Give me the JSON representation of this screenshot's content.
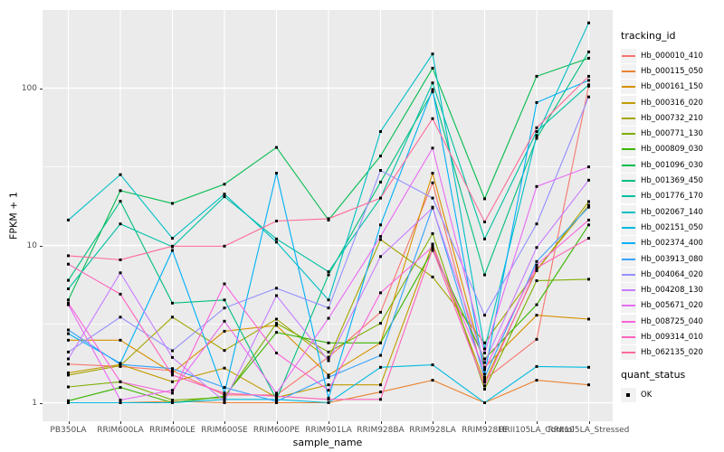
{
  "figure": {
    "background": "#FFFFFF",
    "panel_background": "#EBEBEB",
    "grid_color": "#FFFFFF",
    "tick_label_color": "#4D4D4D",
    "marker_color": "#000000",
    "marker_shape": "filled-square"
  },
  "axes": {
    "x_title": "sample_name",
    "y_title": "FPKM + 1",
    "y_tick_labels": [
      "1",
      "10",
      "100"
    ]
  },
  "legend": {
    "tracking_title": "tracking_id",
    "quant_title": "quant_status",
    "quant_items": [
      {
        "label": "OK"
      }
    ],
    "key_background": "#F2F2F2"
  },
  "chart_data": {
    "type": "line",
    "log_y": true,
    "xlabel": "sample_name",
    "ylabel": "FPKM + 1",
    "ylim": [
      0.93,
      330
    ],
    "y_ticks": [
      1,
      10,
      100
    ],
    "y_minor_gridlines": [
      3.162,
      31.62,
      316.2
    ],
    "grid": true,
    "legend_position": "right",
    "quant_status": "OK",
    "categories": [
      "PB350LA",
      "RRIM600LA",
      "RRIM600LE",
      "RRIM600SE",
      "RRIM600PE",
      "RRIM901LA",
      "RRIM928BA",
      "RRIM928LA",
      "RRIM928LE",
      "RRII105LA_Control",
      "RRII105LA_Stressed"
    ],
    "series": [
      {
        "name": "Hb_000010_410",
        "color": "#F8766D",
        "values": [
          1.76,
          1.7,
          1.6,
          1.12,
          1.12,
          1.95,
          3.76,
          25,
          1.4,
          2.53,
          103
        ]
      },
      {
        "name": "Hb_000115_050",
        "color": "#EA8331",
        "values": [
          1.0,
          1.0,
          1.02,
          1.0,
          1.0,
          1.0,
          1.17,
          1.39,
          1.0,
          1.39,
          1.3
        ]
      },
      {
        "name": "Hb_000161_150",
        "color": "#D89000",
        "values": [
          2.5,
          2.5,
          1.55,
          2.85,
          3.1,
          1.5,
          2.4,
          28.8,
          1.68,
          3.6,
          3.4
        ]
      },
      {
        "name": "Hb_000316_020",
        "color": "#C09B00",
        "values": [
          1.55,
          1.75,
          1.36,
          1.66,
          1.08,
          1.3,
          1.3,
          10.2,
          1.35,
          7.0,
          18.0
        ]
      },
      {
        "name": "Hb_000732_210",
        "color": "#A3A500",
        "values": [
          1.5,
          1.72,
          3.5,
          2.15,
          3.4,
          1.9,
          10.9,
          6.3,
          2.4,
          6.9,
          19.0
        ]
      },
      {
        "name": "Hb_000771_130",
        "color": "#7CAE00",
        "values": [
          1.26,
          1.36,
          1.04,
          1.08,
          3.2,
          2.1,
          3.2,
          11.9,
          1.22,
          5.97,
          6.1
        ]
      },
      {
        "name": "Hb_000809_030",
        "color": "#39B600",
        "values": [
          1.03,
          1.25,
          1.0,
          1.1,
          2.8,
          2.4,
          2.4,
          9.3,
          1.9,
          4.2,
          13.5
        ]
      },
      {
        "name": "Hb_001096_030",
        "color": "#00BB4E",
        "values": [
          4.5,
          22.3,
          18.5,
          24.5,
          42.0,
          14.5,
          37.0,
          134,
          19.8,
          119,
          155
        ]
      },
      {
        "name": "Hb_001369_450",
        "color": "#00BF7D",
        "values": [
          6.0,
          19.1,
          4.3,
          4.5,
          1.05,
          6.5,
          25.3,
          95,
          6.5,
          48,
          170
        ]
      },
      {
        "name": "Hb_001776_170",
        "color": "#00C1A3",
        "values": [
          5.3,
          13.7,
          9.8,
          20.4,
          11.0,
          6.8,
          20.0,
          108,
          11.0,
          53,
          105
        ]
      },
      {
        "name": "Hb_002067_140",
        "color": "#00BFC4",
        "values": [
          14.5,
          28.2,
          11.1,
          21.2,
          10.5,
          4.5,
          53,
          165,
          2.2,
          50,
          260
        ]
      },
      {
        "name": "Hb_002151_050",
        "color": "#00BAE0",
        "values": [
          1.0,
          1.0,
          1.0,
          1.05,
          1.05,
          1.0,
          1.68,
          1.74,
          1.0,
          1.7,
          1.68
        ]
      },
      {
        "name": "Hb_002374_400",
        "color": "#00B0F6",
        "values": [
          2.75,
          1.78,
          9.3,
          1.15,
          28.8,
          1.07,
          13.5,
          98,
          1.52,
          81,
          112
        ]
      },
      {
        "name": "Hb_003913_080",
        "color": "#35A2FF",
        "values": [
          2.9,
          1.75,
          1.65,
          1.25,
          1.02,
          1.45,
          2.0,
          17.5,
          1.45,
          7.9,
          17.5
        ]
      },
      {
        "name": "Hb_004064_020",
        "color": "#9590FF",
        "values": [
          2.1,
          3.5,
          2.14,
          4.0,
          5.35,
          4.0,
          30,
          20,
          3.6,
          13.7,
          88
        ]
      },
      {
        "name": "Hb_004208_130",
        "color": "#C77CFF",
        "values": [
          1.9,
          6.7,
          1.94,
          1.02,
          4.8,
          1.85,
          8.5,
          17.3,
          1.8,
          9.7,
          26
        ]
      },
      {
        "name": "Hb_005671_020",
        "color": "#E76BF3",
        "values": [
          4.2,
          1.04,
          1.2,
          3.3,
          1.15,
          3.44,
          11.4,
          41.6,
          2.07,
          23.7,
          31.6
        ]
      },
      {
        "name": "Hb_008725_040",
        "color": "#FA62DB",
        "values": [
          4.3,
          1.36,
          1.15,
          5.7,
          2.07,
          1.2,
          5.0,
          9.8,
          1.62,
          7.5,
          14.5
        ]
      },
      {
        "name": "Hb_009314_010",
        "color": "#FF62BC",
        "values": [
          7.6,
          4.9,
          1.5,
          1.15,
          1.1,
          1.05,
          1.05,
          9.5,
          1.28,
          7.2,
          11.1
        ]
      },
      {
        "name": "Hb_062135_020",
        "color": "#FF6A98",
        "values": [
          8.6,
          8.1,
          9.9,
          9.9,
          14.3,
          14.8,
          20.0,
          64,
          14.1,
          56,
          119
        ]
      }
    ]
  }
}
